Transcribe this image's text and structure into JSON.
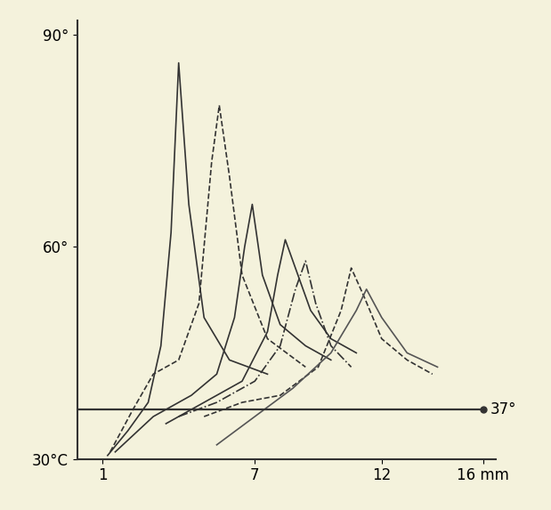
{
  "chart_data": {
    "type": "line",
    "xlim": [
      0,
      16.5
    ],
    "xticks": [
      1,
      7,
      12,
      {
        "value": 16,
        "label": "16 mm"
      }
    ],
    "ylim": [
      30,
      92
    ],
    "yticks": [
      {
        "value": 30,
        "label": "30°C"
      },
      {
        "value": 60,
        "label": "60°"
      },
      {
        "value": 90,
        "label": "90°"
      }
    ],
    "grid": false,
    "reference_line": {
      "y": 37,
      "x": [
        0,
        16
      ],
      "label": "37°",
      "color": "#333333",
      "marker": "o"
    },
    "series": [
      {
        "color": "#333333",
        "line_style": "solid",
        "x": [
          1.2,
          2.0,
          2.8,
          3.3,
          3.7,
          4.0,
          4.4,
          5.0,
          6.0,
          7.5
        ],
        "values": [
          30.5,
          34,
          38,
          46,
          62,
          86,
          66,
          50,
          44,
          42
        ]
      },
      {
        "color": "#333333",
        "line_style": "dashed",
        "x": [
          1.3,
          2.2,
          3.0,
          4.0,
          4.8,
          5.3,
          5.6,
          6.0,
          6.5,
          7.5,
          9.0
        ],
        "values": [
          31,
          37,
          42,
          44,
          52,
          72,
          80,
          70,
          56,
          47,
          43
        ]
      },
      {
        "color": "#333333",
        "line_style": "solid",
        "x": [
          1.5,
          3.0,
          4.5,
          5.5,
          6.2,
          6.6,
          6.9,
          7.3,
          8.0,
          9.0,
          10.0
        ],
        "values": [
          31,
          36,
          39,
          42,
          50,
          60,
          66,
          56,
          49,
          46,
          44
        ]
      },
      {
        "color": "#333333",
        "line_style": "solid",
        "x": [
          3.5,
          5.0,
          6.5,
          7.5,
          7.9,
          8.2,
          8.6,
          9.2,
          10.0,
          11.0
        ],
        "values": [
          35,
          38,
          41,
          48,
          56,
          61,
          57,
          51,
          47,
          45
        ]
      },
      {
        "color": "#333333",
        "line_style": "dashdot",
        "x": [
          4.0,
          5.5,
          7.0,
          8.0,
          8.6,
          9.0,
          9.4,
          10.0,
          10.8
        ],
        "values": [
          36,
          38,
          41,
          46,
          54,
          58,
          52,
          46,
          43
        ]
      },
      {
        "color": "#333333",
        "line_style": "dashed",
        "x": [
          5.0,
          6.5,
          8.0,
          9.5,
          10.4,
          10.8,
          11.3,
          12.0,
          13.0,
          14.0
        ],
        "values": [
          36,
          38,
          39,
          43,
          51,
          57,
          53,
          47,
          44,
          42
        ]
      },
      {
        "color": "#555555",
        "line_style": "solid",
        "x": [
          5.5,
          7.0,
          8.5,
          10.0,
          11.0,
          11.4,
          12.0,
          13.0,
          14.2
        ],
        "values": [
          32,
          36,
          40,
          45,
          51,
          54,
          50,
          45,
          43
        ]
      }
    ]
  }
}
